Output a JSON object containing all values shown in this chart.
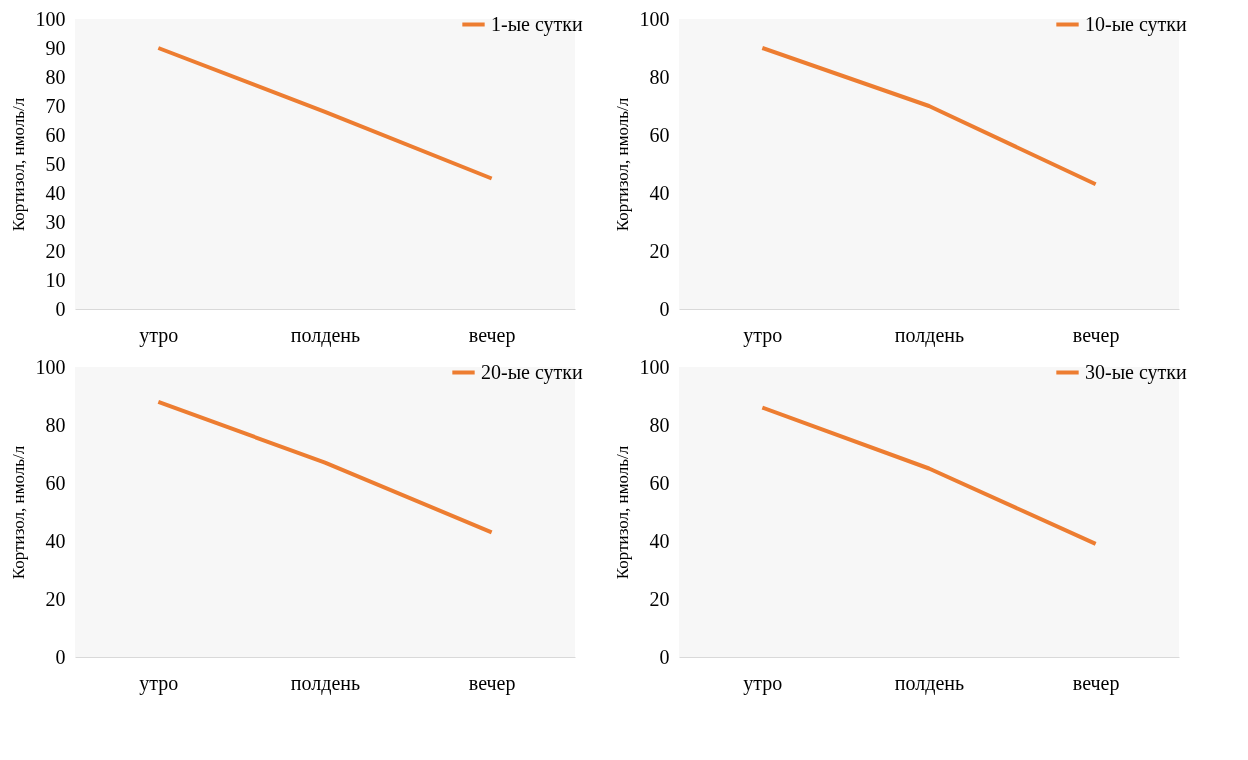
{
  "chart_data": [
    {
      "type": "line",
      "categories": [
        "утро",
        "полдень",
        "вечер"
      ],
      "ylabel": "Кортизол, нмоль/л",
      "ylim": [
        0,
        100
      ],
      "yticks": [
        0,
        10,
        20,
        30,
        40,
        50,
        60,
        70,
        80,
        90,
        100
      ],
      "legend": "top right",
      "series": [
        {
          "name": "1-ые сутки",
          "color": "#ed7d31",
          "values": [
            90,
            68,
            45
          ]
        }
      ]
    },
    {
      "type": "line",
      "categories": [
        "утро",
        "полдень",
        "вечер"
      ],
      "ylabel": "Кортизол, нмоль/л",
      "ylim": [
        0,
        100
      ],
      "yticks": [
        0,
        20,
        40,
        60,
        80,
        100
      ],
      "legend": "top right",
      "series": [
        {
          "name": "10-ые сутки",
          "color": "#ed7d31",
          "values": [
            90,
            70,
            43
          ]
        }
      ]
    },
    {
      "type": "line",
      "categories": [
        "утро",
        "полдень",
        "вечер"
      ],
      "ylabel": "Кортизол, нмоль/л",
      "ylim": [
        0,
        100
      ],
      "yticks": [
        0,
        20,
        40,
        60,
        80,
        100
      ],
      "legend": "top right",
      "series": [
        {
          "name": "20-ые сутки",
          "color": "#ed7d31",
          "values": [
            88,
            67,
            43
          ]
        }
      ]
    },
    {
      "type": "line",
      "categories": [
        "утро",
        "полдень",
        "вечер"
      ],
      "ylabel": "Кортизол, нмоль/л",
      "ylim": [
        0,
        100
      ],
      "yticks": [
        0,
        20,
        40,
        60,
        80,
        100
      ],
      "legend": "top right",
      "series": [
        {
          "name": "30-ые сутки",
          "color": "#ed7d31",
          "values": [
            86,
            65,
            39
          ]
        }
      ]
    }
  ]
}
